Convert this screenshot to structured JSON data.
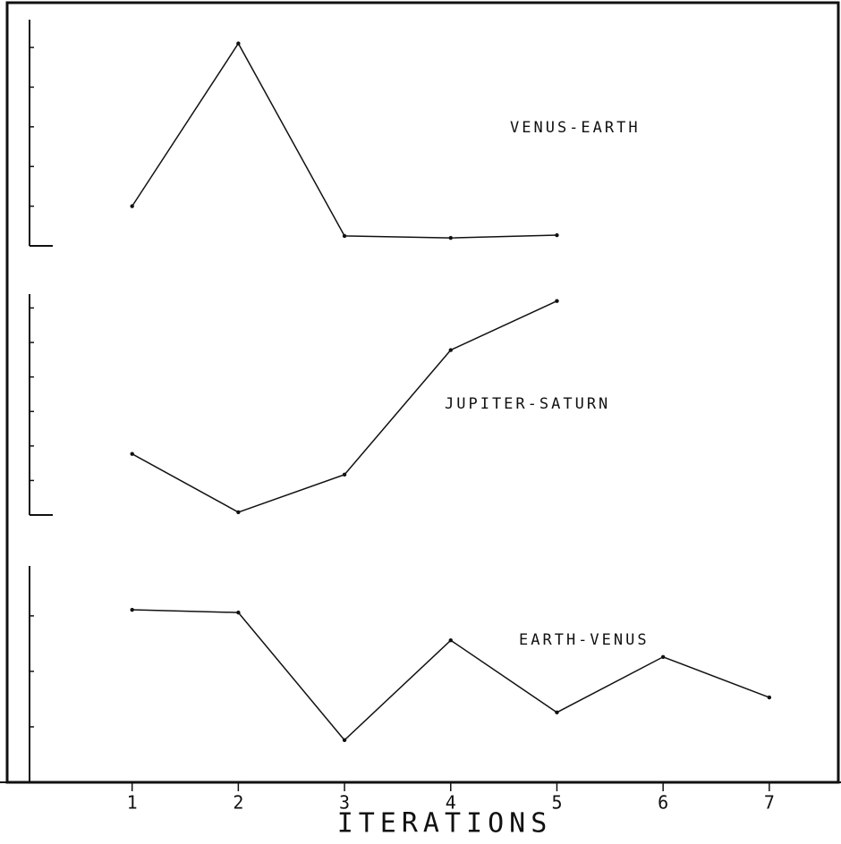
{
  "chart_data": [
    {
      "type": "line",
      "label": "VENUS-EARTH",
      "x": [
        1,
        2,
        3,
        4,
        5
      ],
      "values": [
        1.0,
        5.1,
        0.25,
        0.2,
        0.27
      ],
      "color": "#111111",
      "xlim": [
        -0.16,
        7.65
      ],
      "ylim": [
        0,
        5.7
      ],
      "yticks": [
        1,
        2,
        3,
        4,
        5
      ]
    },
    {
      "type": "line",
      "label": "JUPITER-SATURN",
      "x": [
        1,
        2,
        3,
        4,
        5
      ],
      "values": [
        1.77,
        0.08,
        1.17,
        4.78,
        6.2
      ],
      "color": "#111111",
      "xlim": [
        -0.16,
        7.65
      ],
      "ylim": [
        0,
        6.4
      ],
      "yticks": [
        1,
        2,
        3,
        4,
        5,
        6
      ]
    },
    {
      "type": "line",
      "label": "EARTH-VENUS",
      "x": [
        1,
        2,
        3,
        4,
        5,
        6,
        7
      ],
      "values": [
        3.11,
        3.06,
        0.76,
        2.56,
        1.26,
        2.26,
        1.53
      ],
      "color": "#111111",
      "xlim": [
        -0.16,
        7.65
      ],
      "ylim": [
        0,
        3.9
      ],
      "yticks": [
        1,
        2,
        3
      ],
      "xticks": [
        1,
        2,
        3,
        4,
        5,
        6,
        7
      ],
      "xlabel": "ITERATIONS"
    }
  ]
}
